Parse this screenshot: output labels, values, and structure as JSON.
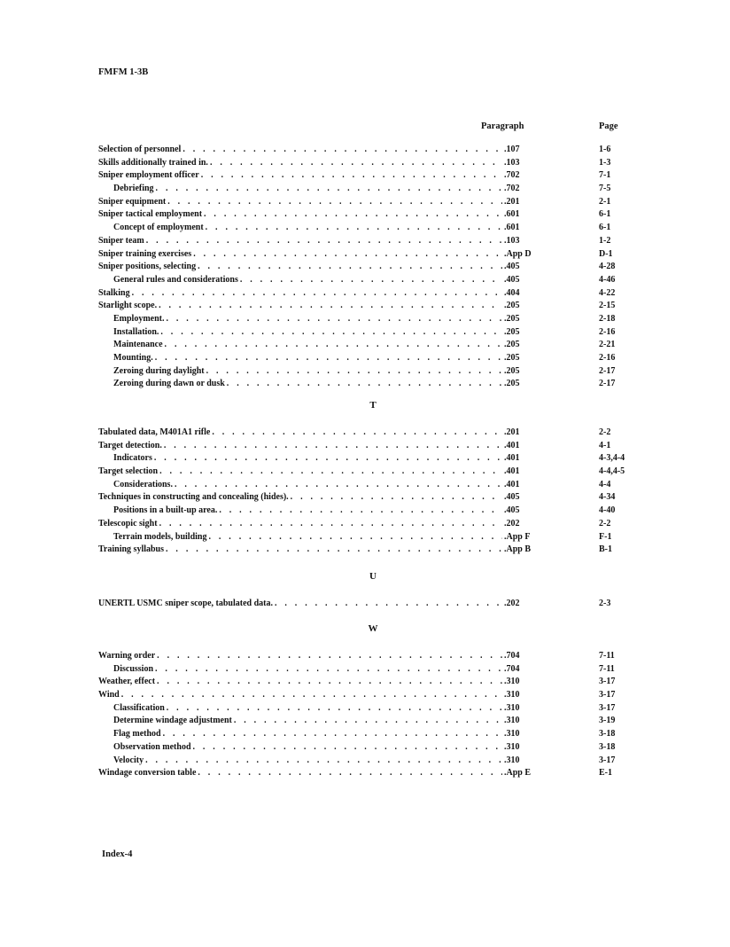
{
  "header": "FMFM 1-3B",
  "footer": "Index-4",
  "columns": {
    "paragraph": "Paragraph",
    "page": "Page"
  },
  "sections": [
    {
      "letter": "",
      "entries": [
        {
          "text": "Selection of personnel",
          "para": ".107",
          "page": "1-6",
          "sub": false
        },
        {
          "text": "Skills additionally trained in.",
          "para": ".103",
          "page": "1-3",
          "sub": false
        },
        {
          "text": "Sniper employment officer",
          "para": ".702",
          "page": "7-1",
          "sub": false
        },
        {
          "text": "Debriefing",
          "para": ".702",
          "page": "7-5",
          "sub": true
        },
        {
          "text": "Sniper equipment",
          "para": ".201",
          "page": "2-1",
          "sub": false
        },
        {
          "text": "Sniper tactical employment",
          "para": ".601",
          "page": "6-1",
          "sub": false
        },
        {
          "text": "Concept of employment",
          "para": ".601",
          "page": "6-1",
          "sub": true
        },
        {
          "text": "Sniper team",
          "para": ".103",
          "page": "1-2",
          "sub": false
        },
        {
          "text": "Sniper training exercises",
          "para": ".App D",
          "page": "D-1",
          "sub": false
        },
        {
          "text": "Sniper positions, selecting",
          "para": ".405",
          "page": "4-28",
          "sub": false
        },
        {
          "text": "General rules and considerations",
          "para": ".405",
          "page": "4-46",
          "sub": true
        },
        {
          "text": "Stalking",
          "para": ".404",
          "page": "4-22",
          "sub": false
        },
        {
          "text": "Starlight scope.",
          "para": ".205",
          "page": "2-15",
          "sub": false
        },
        {
          "text": "Employment.",
          "para": ".205",
          "page": "2-18",
          "sub": true
        },
        {
          "text": "Installation.",
          "para": ".205",
          "page": "2-16",
          "sub": true
        },
        {
          "text": "Maintenance",
          "para": ".205",
          "page": "2-21",
          "sub": true
        },
        {
          "text": "Mounting.",
          "para": ".205",
          "page": "2-16",
          "sub": true
        },
        {
          "text": "Zeroing during daylight",
          "para": ".205",
          "page": "2-17",
          "sub": true
        },
        {
          "text": "Zeroing during dawn or dusk",
          "para": ".205",
          "page": "2-17",
          "sub": true
        }
      ]
    },
    {
      "letter": "T",
      "entries": [
        {
          "text": "Tabulated data, M401A1 rifle",
          "para": ".201",
          "page": "2-2",
          "sub": false
        },
        {
          "text": "Target detection.",
          "para": ".401",
          "page": "4-1",
          "sub": false
        },
        {
          "text": "Indicators",
          "para": ".401",
          "page": "4-3,4-4",
          "sub": true
        },
        {
          "text": "Target selection",
          "para": ".401",
          "page": "4-4,4-5",
          "sub": false
        },
        {
          "text": "Considerations.",
          "para": ".401",
          "page": "4-4",
          "sub": true
        },
        {
          "text": "Techniques in constructing and concealing (hides).",
          "para": ".405",
          "page": "4-34",
          "sub": false
        },
        {
          "text": "Positions in a built-up area.",
          "para": ".405",
          "page": "4-40",
          "sub": true
        },
        {
          "text": "Telescopic sight",
          "para": ".202",
          "page": "2-2",
          "sub": false
        },
        {
          "text": "Terrain models, building",
          "para": ".App F",
          "page": "F-1",
          "sub": true
        },
        {
          "text": "Training syllabus",
          "para": ".App B",
          "page": "B-1",
          "sub": false
        }
      ]
    },
    {
      "letter": "U",
      "entries": [
        {
          "text": "UNERTL USMC sniper scope, tabulated data.",
          "para": ".202",
          "page": "2-3",
          "sub": false
        }
      ]
    },
    {
      "letter": "W",
      "entries": [
        {
          "text": "Warning order",
          "para": ".704",
          "page": "7-11",
          "sub": false
        },
        {
          "text": "Discussion",
          "para": ".704",
          "page": "7-11",
          "sub": true
        },
        {
          "text": "Weather, effect",
          "para": ".310",
          "page": "3-17",
          "sub": false
        },
        {
          "text": "Wind",
          "para": ".310",
          "page": "3-17",
          "sub": false
        },
        {
          "text": "Classification",
          "para": ".310",
          "page": "3-17",
          "sub": true
        },
        {
          "text": "Determine windage adjustment",
          "para": ".310",
          "page": "3-19",
          "sub": true
        },
        {
          "text": "Flag method",
          "para": ".310",
          "page": "3-18",
          "sub": true
        },
        {
          "text": "Observation method",
          "para": ".310",
          "page": "3-18",
          "sub": true
        },
        {
          "text": "Velocity",
          "para": ".310",
          "page": "3-17",
          "sub": true
        },
        {
          "text": "Windage conversion table",
          "para": ".App E",
          "page": "E-1",
          "sub": false
        }
      ]
    }
  ]
}
